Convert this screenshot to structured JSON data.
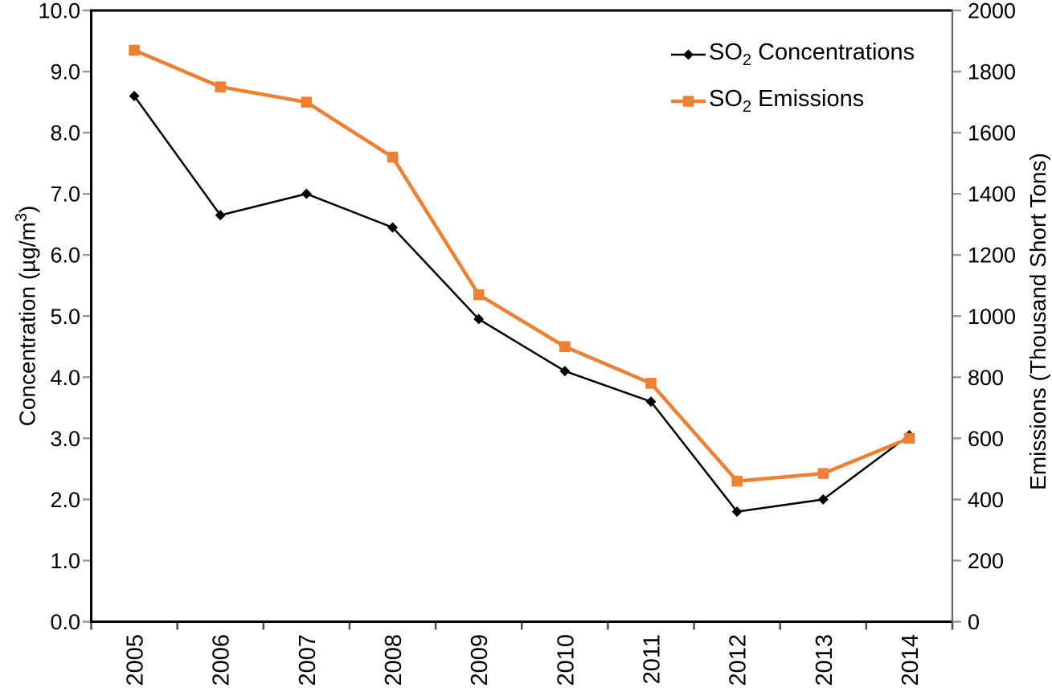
{
  "colors": {
    "background": "#ffffff",
    "text": "#000000",
    "frame": "#000000",
    "right_axis_line": "#666666",
    "side_tick": "#999999",
    "bottom_tick": "#4d4d4d",
    "series_concentrations": "#000000",
    "series_emissions": "#ED8032"
  },
  "chart_data": {
    "type": "line",
    "title": "",
    "grid": false,
    "legend_position": "top-right",
    "categories": [
      "2005",
      "2006",
      "2007",
      "2008",
      "2009",
      "2010",
      "2011",
      "2012",
      "2013",
      "2014"
    ],
    "series": [
      {
        "id": "so2-concentrations",
        "name": "SO2 Concentrations",
        "legend_label": {
          "base": "SO",
          "sub": "2",
          "rest": " Concentrations"
        },
        "axis": "left",
        "color": "#000000",
        "marker": "diamond",
        "line_width": 2.5,
        "marker_size": 13,
        "values": [
          8.6,
          6.65,
          7.0,
          6.45,
          4.95,
          4.1,
          3.6,
          1.8,
          2.0,
          3.05
        ]
      },
      {
        "id": "so2-emissions",
        "name": "SO2 Emissions",
        "legend_label": {
          "base": "SO",
          "sub": "2",
          "rest": " Emissions"
        },
        "axis": "right",
        "color": "#ED8032",
        "marker": "square",
        "line_width": 4.5,
        "marker_size": 13.5,
        "values": [
          1870,
          1750,
          1700,
          1520,
          1070,
          900,
          780,
          460,
          485,
          600
        ]
      }
    ],
    "left_axis": {
      "label_pre": "Concentration (µg/m",
      "label_sup": "3",
      "label_post": ")",
      "min": 0,
      "max": 10,
      "step": 1,
      "tick_labels": [
        "0.0",
        "1.0",
        "2.0",
        "3.0",
        "4.0",
        "5.0",
        "6.0",
        "7.0",
        "8.0",
        "9.0",
        "10.0"
      ]
    },
    "right_axis": {
      "label": "Emissions (Thousand Short Tons)",
      "min": 0,
      "max": 2000,
      "step": 200,
      "tick_labels": [
        "0",
        "200",
        "400",
        "600",
        "800",
        "1000",
        "1200",
        "1400",
        "1600",
        "1800",
        "2000"
      ]
    },
    "x_axis": {
      "rotation": -90
    }
  }
}
